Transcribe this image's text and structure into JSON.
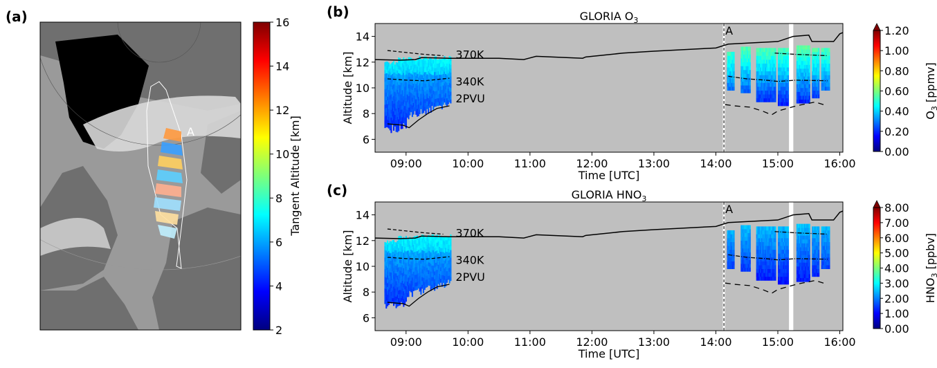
{
  "panels": {
    "a": {
      "label": "(a)"
    },
    "b": {
      "label": "(b)"
    },
    "c": {
      "label": "(c)"
    }
  },
  "colors": {
    "plot_bg": "#bfbfbf",
    "map_ocean": "#d0d0d0",
    "map_land": "#7a7a7a",
    "map_greenland": "#000000",
    "map_highlight": "#eeeeee"
  },
  "chart_data": [
    {
      "type": "other",
      "panel": "a",
      "description_kind": "map",
      "annotation": "A",
      "colorbar": {
        "label": "Tangent Altitude [km]",
        "range": [
          2,
          16
        ],
        "ticks": [
          "2",
          "4",
          "6",
          "8",
          "10",
          "12",
          "14",
          "16"
        ],
        "colormap": "jet"
      }
    },
    {
      "type": "heatmap",
      "panel": "b",
      "title": "GLORIA O",
      "title_sub": "3",
      "xlabel": "Time [UTC]",
      "ylabel": "Altitude [km]",
      "xlim": [
        8.5,
        16.05
      ],
      "ylim": [
        5,
        15
      ],
      "xticks": [
        9,
        10,
        11,
        12,
        13,
        14,
        15,
        16
      ],
      "xtick_labels": [
        "09:00",
        "10:00",
        "11:00",
        "12:00",
        "13:00",
        "14:00",
        "15:00",
        "16:00"
      ],
      "yticks": [
        6,
        8,
        10,
        12,
        14
      ],
      "ytick_labels": [
        "6",
        "8",
        "10",
        "12",
        "14"
      ],
      "annotations": [
        "370K",
        "340K",
        "2PVU",
        "A"
      ],
      "marker_time": 14.13,
      "colorbar": {
        "label": "O",
        "label_sub": "3",
        "label_unit": " [ppmv]",
        "range": [
          0,
          1.2
        ],
        "ticks": [
          "0.00",
          "0.20",
          "0.40",
          "0.60",
          "0.80",
          "1.00",
          "1.20"
        ],
        "colormap": "jet"
      }
    },
    {
      "type": "heatmap",
      "panel": "c",
      "title": "GLORIA HNO",
      "title_sub": "3",
      "xlabel": "Time [UTC]",
      "ylabel": "Altitude [km]",
      "xlim": [
        8.5,
        16.05
      ],
      "ylim": [
        5,
        15
      ],
      "xticks": [
        9,
        10,
        11,
        12,
        13,
        14,
        15,
        16
      ],
      "xtick_labels": [
        "09:00",
        "10:00",
        "11:00",
        "12:00",
        "13:00",
        "14:00",
        "15:00",
        "16:00"
      ],
      "yticks": [
        6,
        8,
        10,
        12,
        14
      ],
      "ytick_labels": [
        "6",
        "8",
        "10",
        "12",
        "14"
      ],
      "annotations": [
        "370K",
        "340K",
        "2PVU",
        "A"
      ],
      "marker_time": 14.13,
      "colorbar": {
        "label": "HNO",
        "label_sub": "3",
        "label_unit": " [ppbv]",
        "range": [
          0,
          8
        ],
        "ticks": [
          "0.00",
          "1.00",
          "2.00",
          "3.00",
          "4.00",
          "5.00",
          "6.00",
          "7.00",
          "8.00"
        ],
        "colormap": "jet"
      }
    }
  ]
}
